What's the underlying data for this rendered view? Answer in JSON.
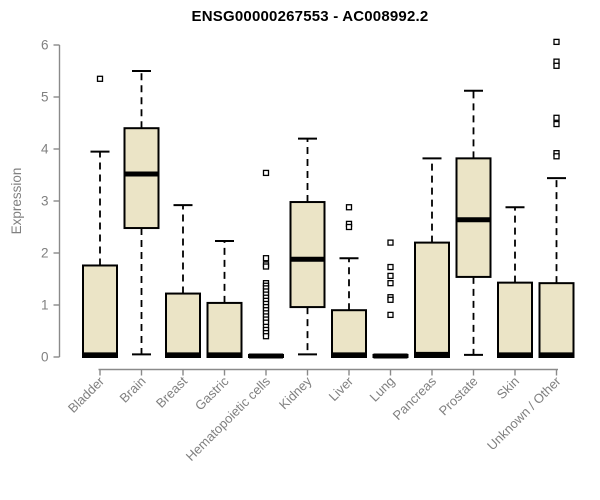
{
  "header": {
    "title": "ENSG00000267553 - AC008992.2"
  },
  "chart_data": {
    "type": "boxplot",
    "title": "ENSG00000267553 - AC008992.2",
    "ylabel": "Expression",
    "xlabel": "",
    "ylim": [
      0,
      6
    ],
    "yticks": [
      0,
      1,
      2,
      3,
      4,
      5,
      6
    ],
    "grid": false,
    "legend": "none",
    "box_fill": "#EBE4C6",
    "box_stroke": "#000000",
    "axis_color": "#8A8A8A",
    "tick_label_color": "#808080",
    "title_color": "#000000",
    "categories": [
      "Bladder",
      "Brain",
      "Breast",
      "Gastric",
      "Hematopoietic cells",
      "Kidney",
      "Liver",
      "Lung",
      "Pancreas",
      "Prostate",
      "Skin",
      "Unknown / Other"
    ],
    "series": [
      {
        "category": "Bladder",
        "whisker_low": 0,
        "q1": 0,
        "median": 0.04,
        "q3": 1.76,
        "whisker_high": 3.95,
        "outliers": [
          5.35
        ]
      },
      {
        "category": "Brain",
        "whisker_low": 0.05,
        "q1": 2.48,
        "median": 3.52,
        "q3": 4.4,
        "whisker_high": 5.5,
        "outliers": []
      },
      {
        "category": "Breast",
        "whisker_low": 0,
        "q1": 0,
        "median": 0.04,
        "q3": 1.22,
        "whisker_high": 2.92,
        "outliers": []
      },
      {
        "category": "Gastric",
        "whisker_low": 0,
        "q1": 0,
        "median": 0.04,
        "q3": 1.04,
        "whisker_high": 2.23,
        "outliers": []
      },
      {
        "category": "Hematopoietic cells",
        "whisker_low": 0,
        "q1": 0,
        "median": 0.02,
        "q3": 0.04,
        "whisker_high": 0.04,
        "outliers": [
          3.54,
          1.9,
          1.78,
          1.74,
          1.42,
          1.37,
          1.32,
          1.26,
          1.2,
          1.14,
          1.08,
          1.02,
          0.96,
          0.9,
          0.84,
          0.78,
          0.72,
          0.66,
          0.58,
          0.52,
          0.46,
          0.4
        ]
      },
      {
        "category": "Kidney",
        "whisker_low": 0.05,
        "q1": 0.96,
        "median": 1.88,
        "q3": 2.98,
        "whisker_high": 4.2,
        "outliers": []
      },
      {
        "category": "Liver",
        "whisker_low": 0,
        "q1": 0,
        "median": 0.04,
        "q3": 0.9,
        "whisker_high": 1.9,
        "outliers": [
          2.88,
          2.56,
          2.5
        ]
      },
      {
        "category": "Lung",
        "whisker_low": 0,
        "q1": 0,
        "median": 0.02,
        "q3": 0.04,
        "whisker_high": 0.04,
        "outliers": [
          2.2,
          1.73,
          1.56,
          1.42,
          1.15,
          1.1,
          0.81
        ]
      },
      {
        "category": "Pancreas",
        "whisker_low": 0,
        "q1": 0,
        "median": 0.05,
        "q3": 2.2,
        "whisker_high": 3.82,
        "outliers": []
      },
      {
        "category": "Prostate",
        "whisker_low": 0.04,
        "q1": 1.54,
        "median": 2.64,
        "q3": 3.82,
        "whisker_high": 5.12,
        "outliers": []
      },
      {
        "category": "Skin",
        "whisker_low": 0,
        "q1": 0,
        "median": 0.04,
        "q3": 1.43,
        "whisker_high": 2.88,
        "outliers": []
      },
      {
        "category": "Unknown / Other",
        "whisker_low": 0,
        "q1": 0,
        "median": 0.04,
        "q3": 1.42,
        "whisker_high": 3.44,
        "outliers": [
          6.06,
          5.68,
          5.6,
          4.6,
          4.48,
          3.92,
          3.86
        ]
      }
    ]
  }
}
